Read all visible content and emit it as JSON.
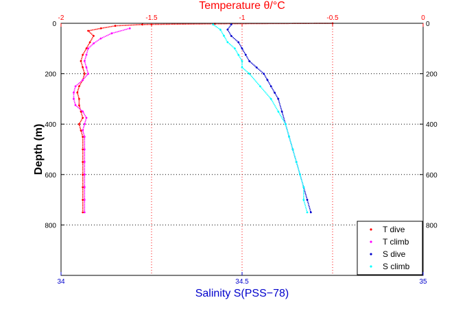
{
  "chart_data": {
    "type": "scatter",
    "title": "Temperature θ/°C",
    "xlabel": "Salinity S(PSS−78)",
    "ylabel": "Depth (m)",
    "top_axis": {
      "label": "Temperature θ/°C",
      "range": [
        -2,
        0
      ],
      "ticks": [
        -2,
        -1.5,
        -1,
        -0.5,
        0
      ],
      "tick_labels": [
        "-2",
        "-1.5",
        "-1",
        "-0.5",
        "0"
      ],
      "color": "#ff0000"
    },
    "bottom_axis": {
      "label": "Salinity S(PSS−78)",
      "range": [
        34,
        35
      ],
      "ticks": [
        34,
        34.5,
        35
      ],
      "tick_labels": [
        "34",
        "34.5",
        "35"
      ],
      "color": "#0000cc"
    },
    "y_axis": {
      "label": "Depth (m)",
      "range": [
        1000,
        0
      ],
      "reversed": true,
      "ticks": [
        0,
        200,
        400,
        600,
        800
      ],
      "tick_labels": [
        "0",
        "200",
        "400",
        "600",
        "800"
      ]
    },
    "grid": true,
    "legend_position": "bottom-right",
    "series": [
      {
        "name": "T dive",
        "axis": "temperature",
        "color": "#ff0000",
        "points": [
          [
            -0.5,
            0
          ],
          [
            -1.15,
            2
          ],
          [
            -1.55,
            5
          ],
          [
            -1.7,
            10
          ],
          [
            -1.78,
            20
          ],
          [
            -1.85,
            30
          ],
          [
            -1.82,
            50
          ],
          [
            -1.84,
            75
          ],
          [
            -1.86,
            100
          ],
          [
            -1.88,
            125
          ],
          [
            -1.89,
            150
          ],
          [
            -1.88,
            175
          ],
          [
            -1.87,
            200
          ],
          [
            -1.88,
            225
          ],
          [
            -1.9,
            250
          ],
          [
            -1.91,
            275
          ],
          [
            -1.9,
            300
          ],
          [
            -1.9,
            325
          ],
          [
            -1.89,
            350
          ],
          [
            -1.88,
            375
          ],
          [
            -1.9,
            400
          ],
          [
            -1.89,
            425
          ],
          [
            -1.88,
            450
          ],
          [
            -1.88,
            500
          ],
          [
            -1.88,
            550
          ],
          [
            -1.88,
            600
          ],
          [
            -1.88,
            650
          ],
          [
            -1.88,
            700
          ],
          [
            -1.88,
            750
          ]
        ]
      },
      {
        "name": "T climb",
        "axis": "temperature",
        "color": "#ff00ff",
        "points": [
          [
            -1.62,
            20
          ],
          [
            -1.72,
            40
          ],
          [
            -1.78,
            60
          ],
          [
            -1.82,
            80
          ],
          [
            -1.85,
            100
          ],
          [
            -1.86,
            125
          ],
          [
            -1.87,
            150
          ],
          [
            -1.86,
            175
          ],
          [
            -1.85,
            200
          ],
          [
            -1.88,
            225
          ],
          [
            -1.92,
            250
          ],
          [
            -1.93,
            275
          ],
          [
            -1.93,
            300
          ],
          [
            -1.92,
            325
          ],
          [
            -1.88,
            350
          ],
          [
            -1.86,
            375
          ],
          [
            -1.87,
            400
          ],
          [
            -1.88,
            425
          ],
          [
            -1.87,
            450
          ],
          [
            -1.87,
            500
          ],
          [
            -1.87,
            550
          ],
          [
            -1.87,
            600
          ],
          [
            -1.87,
            650
          ],
          [
            -1.87,
            700
          ],
          [
            -1.87,
            750
          ]
        ]
      },
      {
        "name": "S dive",
        "axis": "salinity",
        "color": "#0000cc",
        "points": [
          [
            34.47,
            5
          ],
          [
            34.46,
            25
          ],
          [
            34.47,
            50
          ],
          [
            34.49,
            75
          ],
          [
            34.5,
            100
          ],
          [
            34.51,
            125
          ],
          [
            34.52,
            150
          ],
          [
            34.54,
            175
          ],
          [
            34.56,
            200
          ],
          [
            34.57,
            225
          ],
          [
            34.58,
            250
          ],
          [
            34.59,
            275
          ],
          [
            34.6,
            300
          ],
          [
            34.61,
            350
          ],
          [
            34.62,
            400
          ],
          [
            34.63,
            450
          ],
          [
            34.64,
            500
          ],
          [
            34.65,
            550
          ],
          [
            34.66,
            600
          ],
          [
            34.67,
            650
          ],
          [
            34.68,
            700
          ],
          [
            34.69,
            750
          ]
        ]
      },
      {
        "name": "S climb",
        "axis": "salinity",
        "color": "#00ffff",
        "points": [
          [
            34.42,
            5
          ],
          [
            34.44,
            25
          ],
          [
            34.45,
            50
          ],
          [
            34.46,
            75
          ],
          [
            34.48,
            100
          ],
          [
            34.49,
            125
          ],
          [
            34.5,
            150
          ],
          [
            34.5,
            175
          ],
          [
            34.52,
            200
          ],
          [
            34.55,
            250
          ],
          [
            34.58,
            300
          ],
          [
            34.6,
            350
          ],
          [
            34.62,
            400
          ],
          [
            34.63,
            450
          ],
          [
            34.64,
            500
          ],
          [
            34.65,
            550
          ],
          [
            34.66,
            600
          ],
          [
            34.67,
            650
          ],
          [
            34.67,
            700
          ],
          [
            34.68,
            750
          ]
        ]
      }
    ]
  }
}
